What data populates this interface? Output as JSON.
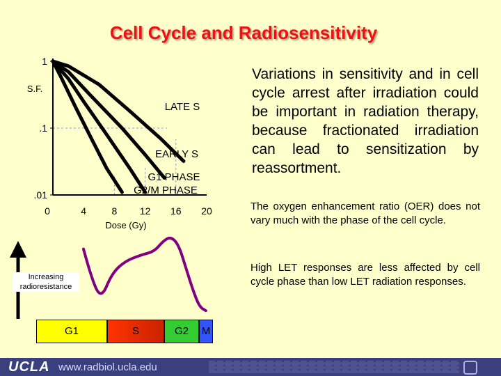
{
  "title": "Cell Cycle and Radiosensitivity",
  "chart_data": [
    {
      "type": "line",
      "title": "",
      "ylabel": "S.F.",
      "xlabel": "Dose (Gy)",
      "yscale": "log",
      "ylim": [
        0.01,
        1
      ],
      "xlim": [
        0,
        20
      ],
      "x_ticks": [
        "0",
        "4",
        "8",
        "12",
        "16",
        "20"
      ],
      "y_ticks": [
        "1",
        ".1",
        ".01"
      ],
      "series": [
        {
          "name": "LATE S",
          "x": [
            0,
            2,
            6,
            10,
            14,
            17
          ],
          "y": [
            1,
            0.85,
            0.45,
            0.18,
            0.07,
            0.032
          ]
        },
        {
          "name": "EARLY S",
          "x": [
            0,
            2,
            5,
            9,
            12,
            14.5
          ],
          "y": [
            1,
            0.7,
            0.3,
            0.1,
            0.04,
            0.018
          ]
        },
        {
          "name": "G1 PHASE",
          "x": [
            0,
            2,
            4,
            7,
            10,
            12
          ],
          "y": [
            1,
            0.55,
            0.25,
            0.08,
            0.025,
            0.011
          ]
        },
        {
          "name": "G2/M PHASE",
          "x": [
            0,
            1,
            3,
            5,
            7,
            9
          ],
          "y": [
            1,
            0.6,
            0.2,
            0.07,
            0.025,
            0.011
          ]
        }
      ]
    },
    {
      "type": "line",
      "title": "",
      "ylabel": "Increasing radioresistance",
      "categories": [
        "G1",
        "S",
        "G2",
        "M"
      ],
      "x": [
        0.0,
        0.07,
        0.14,
        0.22,
        0.32,
        0.45,
        0.55,
        0.62,
        0.68,
        0.74,
        0.8,
        0.85,
        0.9,
        0.95
      ],
      "y": [
        0.85,
        0.45,
        0.25,
        0.55,
        0.7,
        0.78,
        0.82,
        0.95,
        1.0,
        0.9,
        0.6,
        0.35,
        0.15,
        0.1
      ]
    }
  ],
  "phases": [
    {
      "label": "G1",
      "color": "#ffff00"
    },
    {
      "label": "S",
      "color": "#ff3300"
    },
    {
      "label": "G2",
      "color": "#33cc33"
    },
    {
      "label": "M",
      "color": "#3355ff"
    }
  ],
  "right_text": {
    "main": "Variations in sensitivity and in cell cycle arrest after irradiation could be important in radiation therapy, because fractionated irradiation can lead to sensitization by reassortment.",
    "oer": "The oxygen enhancement ratio (OER) does not vary much with the phase of the cell cycle.",
    "let": "High LET responses are less affected by cell cycle phase than low LET radiation responses."
  },
  "radioresistance_label": "Increasing radioresistance",
  "footer": {
    "logo": "UCLA",
    "url": "www.radbiol.ucla.edu"
  },
  "colors": {
    "title": "#ee1111",
    "background": "#ffffcc",
    "curve": "#000000",
    "footer": "#3a3f7e",
    "radioresistance_curve": "#800080"
  }
}
